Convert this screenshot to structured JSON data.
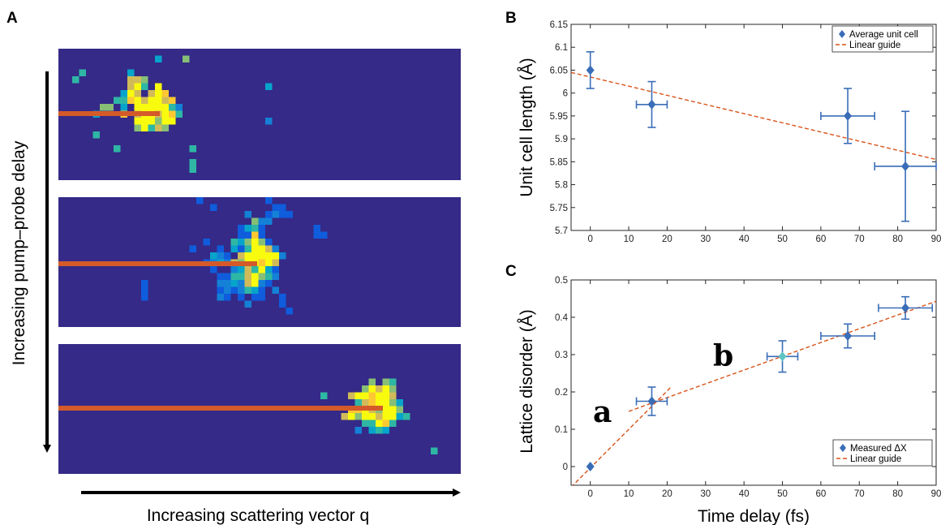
{
  "panel_letters": {
    "a": "A",
    "b": "B",
    "c": "C"
  },
  "heatmap": {
    "ylabel": "Increasing pump–probe delay",
    "xlabel": "Increasing scattering vector q",
    "background_color": "#352a87",
    "streak_color": "#d45a2a",
    "colormap": [
      "#352a87",
      "#0f5cdd",
      "#1481d6",
      "#06a4ca",
      "#2eb7a4",
      "#87bf77",
      "#d1bb59",
      "#fec832",
      "#f9fb0e"
    ],
    "frames_count": 3
  },
  "colors": {
    "marker": "#3a6db7",
    "marker_highlight": "#5ec4c4",
    "guide": "#d95319"
  },
  "chart_data": [
    {
      "type": "scatter",
      "xlabel": "",
      "ylabel": "Unit cell length (Å)",
      "xlim": [
        -5,
        90
      ],
      "ylim": [
        5.7,
        6.15
      ],
      "xticks": [
        "0",
        "10",
        "20",
        "30",
        "40",
        "50",
        "60",
        "70",
        "80",
        "90"
      ],
      "yticks": [
        "5.7",
        "5.75",
        "5.8",
        "5.85",
        "5.9",
        "5.95",
        "6",
        "6.05",
        "6.1",
        "6.15"
      ],
      "series": [
        {
          "name": "Average unit cell",
          "points": [
            {
              "x": 0,
              "y": 6.05,
              "xerr": 0,
              "yerr": 0.04
            },
            {
              "x": 16,
              "y": 5.975,
              "xerr": 4,
              "yerr": 0.05
            },
            {
              "x": 67,
              "y": 5.95,
              "xerr": 7,
              "yerr": 0.06
            },
            {
              "x": 82,
              "y": 5.84,
              "xerr": 8,
              "yerr": 0.12
            }
          ]
        },
        {
          "name": "Linear guide",
          "line": [
            [
              -5,
              6.045
            ],
            [
              90,
              5.855
            ]
          ]
        }
      ],
      "legend": [
        "Average unit cell",
        "Linear guide"
      ],
      "legend_position": "top-right",
      "grid": false
    },
    {
      "type": "scatter",
      "xlabel": "Time delay (fs)",
      "ylabel": "Lattice disorder (Å)",
      "xlim": [
        -5,
        90
      ],
      "ylim": [
        -0.05,
        0.5
      ],
      "xticks": [
        "0",
        "10",
        "20",
        "30",
        "40",
        "50",
        "60",
        "70",
        "80",
        "90"
      ],
      "yticks": [
        "0",
        "0.1",
        "0.2",
        "0.3",
        "0.4",
        "0.5"
      ],
      "series": [
        {
          "name": "Measured ΔX",
          "points": [
            {
              "x": 0,
              "y": 0,
              "xerr": 0,
              "yerr": 0,
              "highlight": false
            },
            {
              "x": 16,
              "y": 0.175,
              "xerr": 4,
              "yerr": 0.038,
              "highlight": false
            },
            {
              "x": 50,
              "y": 0.295,
              "xerr": 4,
              "yerr": 0.042,
              "highlight": true
            },
            {
              "x": 67,
              "y": 0.35,
              "xerr": 7,
              "yerr": 0.032,
              "highlight": false
            },
            {
              "x": 82,
              "y": 0.425,
              "xerr": 7,
              "yerr": 0.03,
              "highlight": false
            }
          ]
        },
        {
          "name": "Linear guide",
          "lines": [
            [
              [
                -5,
                -0.055
              ],
              [
                21,
                0.213
              ]
            ],
            [
              [
                10,
                0.148
              ],
              [
                90,
                0.443
              ]
            ]
          ]
        }
      ],
      "legend": [
        "Measured ΔX",
        "Linear guide"
      ],
      "legend_position": "bottom-right",
      "annotations": [
        "a",
        "b"
      ],
      "grid": false
    }
  ]
}
